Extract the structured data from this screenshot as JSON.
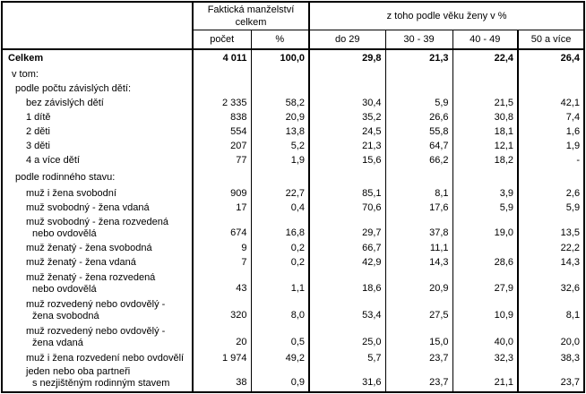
{
  "colors": {
    "border": "#000000",
    "background": "#ffffff",
    "text": "#000000"
  },
  "header": {
    "corner_label": "",
    "group1": "Faktická manželství celkem",
    "group2": "z toho podle věku ženy v %",
    "columns": [
      "počet",
      "%",
      "do 29",
      "30 - 39",
      "40 - 49",
      "50 a více"
    ]
  },
  "table": {
    "rows": [
      {
        "label": "Celkem",
        "indent": 0,
        "bold": true,
        "values": [
          "4 011",
          "100,0",
          "29,8",
          "21,3",
          "22,4",
          "26,4"
        ]
      },
      {
        "label": "v tom:",
        "indent": 1,
        "values": [
          "",
          "",
          "",
          "",
          "",
          ""
        ]
      },
      {
        "label": "podle počtu závislých dětí:",
        "indent": 2,
        "values": [
          "",
          "",
          "",
          "",
          "",
          ""
        ]
      },
      {
        "label": "bez závislých dětí",
        "indent": 3,
        "values": [
          "2 335",
          "58,2",
          "30,4",
          "5,9",
          "21,5",
          "42,1"
        ]
      },
      {
        "label": "1 dítě",
        "indent": 3,
        "values": [
          "838",
          "20,9",
          "35,2",
          "26,6",
          "30,8",
          "7,4"
        ]
      },
      {
        "label": "2 děti",
        "indent": 3,
        "values": [
          "554",
          "13,8",
          "24,5",
          "55,8",
          "18,1",
          "1,6"
        ]
      },
      {
        "label": "3 děti",
        "indent": 3,
        "values": [
          "207",
          "5,2",
          "21,3",
          "64,7",
          "12,1",
          "1,9"
        ]
      },
      {
        "label": "4 a více dětí",
        "indent": 3,
        "values": [
          "77",
          "1,9",
          "15,6",
          "66,2",
          "18,2",
          "-"
        ]
      },
      {
        "label": "podle rodinného stavu:",
        "indent": 2,
        "values": [
          "",
          "",
          "",
          "",
          "",
          ""
        ]
      },
      {
        "label": "muž i žena svobodní",
        "indent": 3,
        "values": [
          "909",
          "22,7",
          "85,1",
          "8,1",
          "3,9",
          "2,6"
        ]
      },
      {
        "label": "muž svobodný - žena vdaná",
        "indent": 3,
        "values": [
          "17",
          "0,4",
          "70,6",
          "17,6",
          "5,9",
          "5,9"
        ]
      },
      {
        "label": "muž svobodný - žena rozvedená",
        "label2": "nebo ovdovělá",
        "indent": 3,
        "values": [
          "674",
          "16,8",
          "29,7",
          "37,8",
          "19,0",
          "13,5"
        ]
      },
      {
        "label": "muž ženatý - žena svobodná",
        "indent": 3,
        "values": [
          "9",
          "0,2",
          "66,7",
          "11,1",
          "",
          "22,2"
        ]
      },
      {
        "label": "muž ženatý - žena vdaná",
        "indent": 3,
        "values": [
          "7",
          "0,2",
          "42,9",
          "14,3",
          "28,6",
          "14,3"
        ]
      },
      {
        "label": "muž ženatý - žena rozvedená",
        "label2": "nebo ovdovělá",
        "indent": 3,
        "values": [
          "43",
          "1,1",
          "18,6",
          "20,9",
          "27,9",
          "32,6"
        ]
      },
      {
        "label": "muž rozvedený nebo ovdovělý -",
        "label2": "žena svobodná",
        "indent": 3,
        "values": [
          "320",
          "8,0",
          "53,4",
          "27,5",
          "10,9",
          "8,1"
        ]
      },
      {
        "label": "muž rozvedený nebo ovdovělý -",
        "label2": "žena vdaná",
        "indent": 3,
        "values": [
          "20",
          "0,5",
          "25,0",
          "15,0",
          "40,0",
          "20,0"
        ]
      },
      {
        "label": "muž i žena rozvedení nebo ovdovělí",
        "indent": 3,
        "values": [
          "1 974",
          "49,2",
          "5,7",
          "23,7",
          "32,3",
          "38,3"
        ]
      },
      {
        "label": "jeden nebo oba partneři",
        "label2": "s nezjištěným rodinným stavem",
        "indent": 3,
        "values": [
          "38",
          "0,9",
          "31,6",
          "23,7",
          "21,1",
          "23,7"
        ]
      }
    ]
  }
}
